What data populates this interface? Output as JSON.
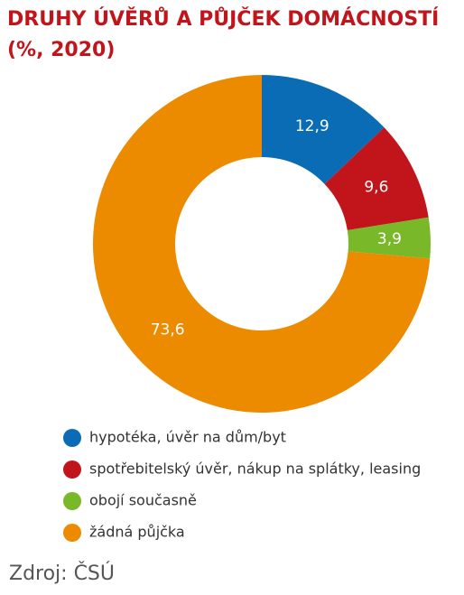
{
  "chart_data": {
    "type": "donut",
    "title": "DRUHY ÚVĚRŮ A PŮJČEK DOMÁCNOSTÍ",
    "subtitle": "(%, 2020)",
    "categories": [
      "hypotéka, úvěr na dům/byt",
      "spotřebitelský úvěr, nákup na splátky, leasing",
      "obojí současně",
      "žádná půjčka"
    ],
    "values": [
      12.9,
      9.6,
      3.9,
      73.6
    ],
    "value_labels": [
      "12,9",
      "9,6",
      "3,9",
      "73,6"
    ],
    "colors": [
      "#0a6cb4",
      "#c1141b",
      "#78b829",
      "#ec8b00"
    ],
    "source": "Zdroj: ČSÚ"
  }
}
